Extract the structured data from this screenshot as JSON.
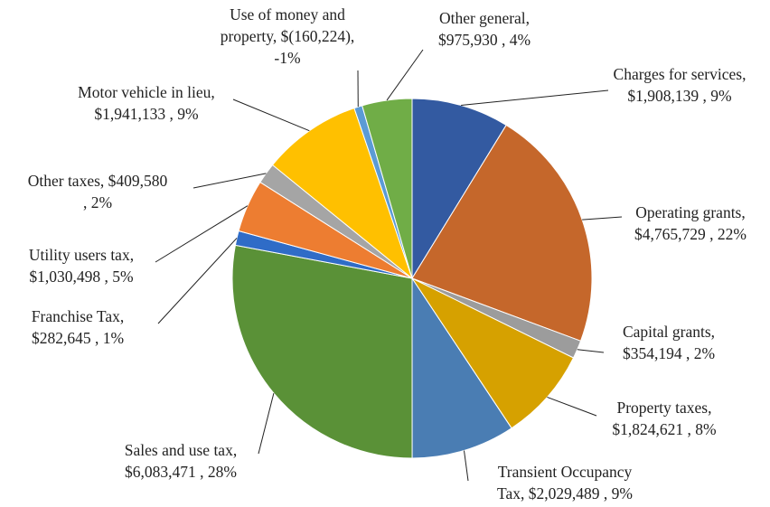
{
  "chart_data": {
    "type": "pie",
    "values": [
      1908139,
      4765729,
      354194,
      1824621,
      2029489,
      6083471,
      282645,
      1030498,
      409580,
      1941133,
      -160224,
      975930
    ],
    "value_labels": [
      [
        "Charges for services,",
        "$1,908,139 , 9%"
      ],
      [
        "Operating grants,",
        "$4,765,729 , 22%"
      ],
      [
        "Capital grants,",
        "$354,194 , 2%"
      ],
      [
        "Property taxes,",
        "$1,824,621 , 8%"
      ],
      [
        "Transient Occupancy",
        "Tax,  $2,029,489 , 9%"
      ],
      [
        "Sales and use tax,",
        "$6,083,471 , 28%"
      ],
      [
        "Franchise Tax,",
        "$282,645 , 1%"
      ],
      [
        "Utility users tax,",
        "$1,030,498 , 5%"
      ],
      [
        "Other taxes,  $409,580",
        ", 2%"
      ],
      [
        "Motor vehicle in lieu,",
        "$1,941,133 , 9%"
      ],
      [
        "Use of money and",
        "property,  $(160,224),",
        "-1%"
      ],
      [
        "Other general,",
        "$975,930 , 4%"
      ]
    ],
    "colors": [
      "#335aa1",
      "#c5672b",
      "#9c9c9c",
      "#d6a100",
      "#4a7db3",
      "#5a9137",
      "#2f6cc7",
      "#ed7d31",
      "#a5a5a5",
      "#ffc000",
      "#5b9bd5",
      "#70ad47"
    ]
  }
}
